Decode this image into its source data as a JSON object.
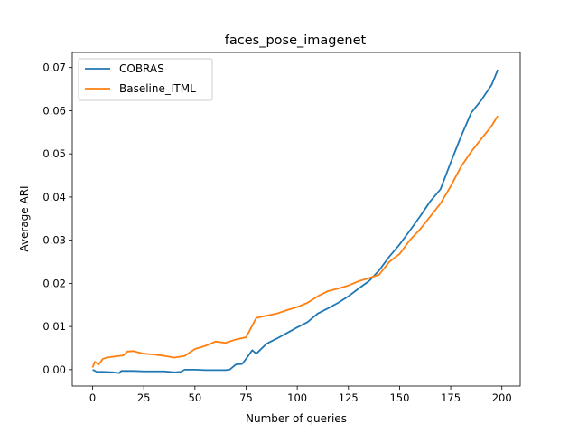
{
  "chart_data": {
    "type": "line",
    "title": "faces_pose_imagenet",
    "xlabel": "Number of queries",
    "ylabel": "Average ARI",
    "xlim": [
      -9.95,
      208.95
    ],
    "ylim": [
      -0.0038,
      0.0735
    ],
    "xticks": [
      0,
      25,
      50,
      75,
      100,
      125,
      150,
      175,
      200
    ],
    "yticks": [
      0.0,
      0.01,
      0.02,
      0.03,
      0.04,
      0.05,
      0.06,
      0.07
    ],
    "xtick_labels": [
      "0",
      "25",
      "50",
      "75",
      "100",
      "125",
      "150",
      "175",
      "200"
    ],
    "ytick_labels": [
      "0.00",
      "0.01",
      "0.02",
      "0.03",
      "0.04",
      "0.05",
      "0.06",
      "0.07"
    ],
    "grid": false,
    "legend": "top-left",
    "series": [
      {
        "name": "COBRAS",
        "color": "#1f77b4",
        "x": [
          0,
          2,
          5,
          10,
          13,
          14,
          20,
          25,
          30,
          35,
          40,
          43,
          45,
          50,
          55,
          60,
          65,
          67,
          70,
          73,
          75,
          78,
          80,
          85,
          90,
          95,
          100,
          105,
          110,
          115,
          120,
          125,
          130,
          135,
          140,
          145,
          150,
          155,
          160,
          165,
          170,
          175,
          180,
          185,
          190,
          195,
          198
        ],
        "values": [
          0.0,
          -0.0005,
          -0.0005,
          -0.0006,
          -0.0008,
          -0.0003,
          -0.0003,
          -0.0004,
          -0.0004,
          -0.0004,
          -0.0006,
          -0.0005,
          0.0,
          0.0,
          -0.0001,
          -0.0001,
          -0.0001,
          0.0,
          0.0012,
          0.0013,
          0.0025,
          0.0045,
          0.0037,
          0.006,
          0.0072,
          0.0085,
          0.0098,
          0.011,
          0.013,
          0.0142,
          0.0155,
          0.017,
          0.0188,
          0.0205,
          0.023,
          0.0262,
          0.029,
          0.0322,
          0.0355,
          0.039,
          0.0418,
          0.048,
          0.054,
          0.0595,
          0.0625,
          0.066,
          0.0695
        ]
      },
      {
        "name": "Baseline_ITML",
        "color": "#ff7f0e",
        "x": [
          0,
          1,
          3,
          5,
          7,
          10,
          15,
          17,
          20,
          25,
          30,
          35,
          40,
          45,
          50,
          55,
          60,
          65,
          70,
          75,
          80,
          85,
          90,
          95,
          100,
          105,
          110,
          115,
          120,
          125,
          130,
          135,
          140,
          145,
          150,
          155,
          160,
          165,
          170,
          175,
          180,
          185,
          190,
          195,
          198
        ],
        "values": [
          0.0005,
          0.0018,
          0.0012,
          0.0025,
          0.0028,
          0.003,
          0.0033,
          0.0042,
          0.0043,
          0.0037,
          0.0035,
          0.0032,
          0.0028,
          0.0032,
          0.0048,
          0.0055,
          0.0065,
          0.0062,
          0.007,
          0.0075,
          0.012,
          0.0125,
          0.013,
          0.0138,
          0.0145,
          0.0155,
          0.017,
          0.0182,
          0.0188,
          0.0195,
          0.0205,
          0.0212,
          0.022,
          0.025,
          0.0268,
          0.03,
          0.0325,
          0.0355,
          0.0385,
          0.0425,
          0.047,
          0.0505,
          0.0535,
          0.0565,
          0.0588
        ]
      }
    ]
  }
}
